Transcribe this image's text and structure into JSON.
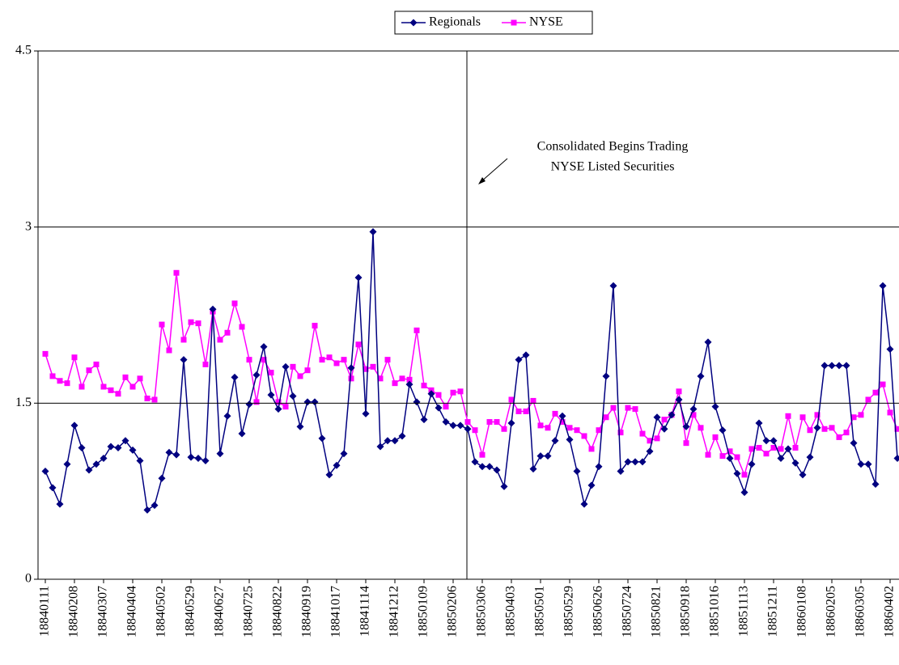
{
  "chart_data": {
    "type": "line",
    "annotation": [
      "Consolidated Begins Trading",
      "NYSE Listed Securities"
    ],
    "categories": [
      "18840111",
      null,
      null,
      null,
      "18840208",
      null,
      null,
      null,
      "18840307",
      null,
      null,
      null,
      "18840404",
      null,
      null,
      null,
      "18840502",
      null,
      null,
      null,
      "18840529",
      null,
      null,
      null,
      "18840627",
      null,
      null,
      null,
      "18840725",
      null,
      null,
      null,
      "18840822",
      null,
      null,
      null,
      "18840919",
      null,
      null,
      null,
      "18841017",
      null,
      null,
      null,
      "18841114",
      null,
      null,
      null,
      "18841212",
      null,
      null,
      null,
      "18850109",
      null,
      null,
      null,
      "18850206",
      null,
      null,
      null,
      "18850306",
      null,
      null,
      null,
      "18850403",
      null,
      null,
      null,
      "18850501",
      null,
      null,
      null,
      "18850529",
      null,
      null,
      null,
      "18850626",
      null,
      null,
      null,
      "18850724",
      null,
      null,
      null,
      "18850821",
      null,
      null,
      null,
      "18850918",
      null,
      null,
      null,
      "18851016",
      null,
      null,
      null,
      "18851113",
      null,
      null,
      null,
      "18851211",
      null,
      null,
      null,
      "18860108",
      null,
      null,
      null,
      "18860205",
      null,
      null,
      null,
      "18860305",
      null,
      null,
      null,
      "18860402",
      null
    ],
    "series": [
      {
        "name": "Regionals",
        "color": "#000080",
        "marker": "diamond",
        "values": [
          0.92,
          0.78,
          0.64,
          0.98,
          1.31,
          1.12,
          0.93,
          0.98,
          1.03,
          1.13,
          1.12,
          1.18,
          1.1,
          1.01,
          0.59,
          0.63,
          0.86,
          1.08,
          1.06,
          1.87,
          1.04,
          1.03,
          1.01,
          2.3,
          1.07,
          1.39,
          1.72,
          1.24,
          1.49,
          1.74,
          1.98,
          1.57,
          1.45,
          1.81,
          1.56,
          1.3,
          1.51,
          1.51,
          1.2,
          0.89,
          0.97,
          1.07,
          1.8,
          2.57,
          1.41,
          2.96,
          1.13,
          1.18,
          1.18,
          1.22,
          1.66,
          1.51,
          1.36,
          1.58,
          1.46,
          1.34,
          1.31,
          1.31,
          1.28,
          1.0,
          0.96,
          0.96,
          0.93,
          0.79,
          1.33,
          1.87,
          1.91,
          0.94,
          1.05,
          1.05,
          1.18,
          1.39,
          1.19,
          0.92,
          0.64,
          0.8,
          0.96,
          1.73,
          2.5,
          0.92,
          1.0,
          1.0,
          1.0,
          1.09,
          1.38,
          1.28,
          1.4,
          1.53,
          1.3,
          1.45,
          1.73,
          2.02,
          1.47,
          1.27,
          1.03,
          0.9,
          0.74,
          0.98,
          1.33,
          1.18,
          1.18,
          1.03,
          1.11,
          0.99,
          0.89,
          1.04,
          1.29,
          1.82,
          1.82,
          1.82,
          1.82,
          1.16,
          0.98,
          0.98,
          0.81,
          2.5,
          1.96,
          1.03
        ]
      },
      {
        "name": "NYSE",
        "color": "#ff00ff",
        "marker": "square",
        "values": [
          1.92,
          1.73,
          1.69,
          1.67,
          1.89,
          1.64,
          1.78,
          1.83,
          1.64,
          1.61,
          1.58,
          1.72,
          1.64,
          1.71,
          1.54,
          1.53,
          2.17,
          1.95,
          2.61,
          2.04,
          2.19,
          2.18,
          1.83,
          2.28,
          2.04,
          2.1,
          2.35,
          2.15,
          1.87,
          1.51,
          1.87,
          1.76,
          1.51,
          1.47,
          1.81,
          1.73,
          1.78,
          2.16,
          1.87,
          1.89,
          1.84,
          1.87,
          1.71,
          2.0,
          1.79,
          1.81,
          1.71,
          1.87,
          1.67,
          1.71,
          1.7,
          2.12,
          1.65,
          1.61,
          1.57,
          1.47,
          1.59,
          1.6,
          1.34,
          1.27,
          1.06,
          1.34,
          1.34,
          1.28,
          1.53,
          1.43,
          1.43,
          1.52,
          1.31,
          1.29,
          1.41,
          1.34,
          1.29,
          1.27,
          1.22,
          1.11,
          1.27,
          1.38,
          1.46,
          1.25,
          1.46,
          1.45,
          1.24,
          1.18,
          1.2,
          1.36,
          1.4,
          1.6,
          1.16,
          1.4,
          1.29,
          1.06,
          1.21,
          1.05,
          1.09,
          1.04,
          0.89,
          1.11,
          1.12,
          1.07,
          1.12,
          1.11,
          1.39,
          1.12,
          1.38,
          1.27,
          1.4,
          1.28,
          1.29,
          1.21,
          1.25,
          1.38,
          1.4,
          1.53,
          1.59,
          1.66,
          1.42,
          1.28
        ]
      }
    ],
    "ylim": [
      0,
      4.5
    ],
    "yticks": [
      0,
      1.5,
      3,
      4.5
    ],
    "grid": true,
    "legend": "top"
  }
}
